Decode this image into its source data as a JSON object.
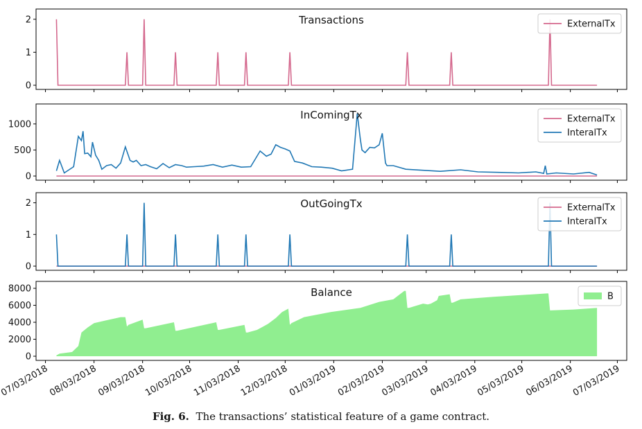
{
  "caption": {
    "label": "Fig. 6.",
    "text": "The transactions’ statistical feature of a game contract."
  },
  "colors": {
    "external": "#d4688d",
    "internal": "#1f77b4",
    "balance": "#90ee90"
  },
  "chart_data": [
    {
      "type": "line",
      "title": "Transactions",
      "ylim": [
        0,
        2.1
      ],
      "yticks": [
        "0",
        "1",
        "2"
      ],
      "legend_position": "top-right",
      "series": [
        {
          "name": "ExternalTx",
          "x": [
            "2018-07-10",
            "2018-07-11",
            "2018-08-23",
            "2018-08-24",
            "2018-08-25",
            "2018-09-03",
            "2018-09-04",
            "2018-09-05",
            "2018-09-23",
            "2018-09-24",
            "2018-09-25",
            "2018-10-20",
            "2018-10-21",
            "2018-10-22",
            "2018-11-07",
            "2018-11-08",
            "2018-11-09",
            "2018-12-05",
            "2018-12-06",
            "2018-12-07",
            "2019-02-18",
            "2019-02-19",
            "2019-02-20",
            "2019-03-18",
            "2019-03-19",
            "2019-03-20",
            "2019-05-20",
            "2019-05-21",
            "2019-05-22",
            "2019-06-20"
          ],
          "values": [
            2,
            0,
            0,
            1,
            0,
            0,
            2,
            0,
            0,
            1,
            0,
            0,
            1,
            0,
            0,
            1,
            0,
            0,
            1,
            0,
            0,
            1,
            0,
            0,
            1,
            0,
            0,
            2,
            0,
            0
          ]
        }
      ]
    },
    {
      "type": "line",
      "title": "InComingTx",
      "ylim": [
        0,
        1250
      ],
      "yticks": [
        "0",
        "500",
        "1000"
      ],
      "legend_position": "top-right",
      "series": [
        {
          "name": "ExternalTx",
          "x": [
            "2018-07-10",
            "2019-06-20"
          ],
          "values": [
            0,
            0
          ]
        },
        {
          "name": "InteralTx",
          "x": [
            "2018-07-10",
            "2018-07-12",
            "2018-07-15",
            "2018-07-18",
            "2018-07-21",
            "2018-07-24",
            "2018-07-26",
            "2018-07-27",
            "2018-07-28",
            "2018-07-30",
            "2018-08-01",
            "2018-08-02",
            "2018-08-04",
            "2018-08-06",
            "2018-08-08",
            "2018-08-11",
            "2018-08-14",
            "2018-08-17",
            "2018-08-20",
            "2018-08-23",
            "2018-08-26",
            "2018-08-28",
            "2018-08-30",
            "2018-09-02",
            "2018-09-05",
            "2018-09-08",
            "2018-09-12",
            "2018-09-16",
            "2018-09-20",
            "2018-09-24",
            "2018-09-28",
            "2018-10-01",
            "2018-10-06",
            "2018-10-12",
            "2018-10-18",
            "2018-10-24",
            "2018-10-30",
            "2018-11-05",
            "2018-11-11",
            "2018-11-17",
            "2018-11-21",
            "2018-11-24",
            "2018-11-27",
            "2018-11-30",
            "2018-12-03",
            "2018-12-06",
            "2018-12-09",
            "2018-12-14",
            "2018-12-20",
            "2018-12-26",
            "2019-01-02",
            "2019-01-08",
            "2019-01-15",
            "2019-01-18",
            "2019-01-20",
            "2019-01-21",
            "2019-01-23",
            "2019-01-26",
            "2019-01-29",
            "2019-02-01",
            "2019-02-03",
            "2019-02-05",
            "2019-02-06",
            "2019-02-10",
            "2019-02-18",
            "2019-03-01",
            "2019-03-12",
            "2019-03-25",
            "2019-04-05",
            "2019-04-18",
            "2019-05-01",
            "2019-05-12",
            "2019-05-17",
            "2019-05-18",
            "2019-05-19",
            "2019-05-25",
            "2019-06-05",
            "2019-06-15",
            "2019-06-20"
          ],
          "values": [
            100,
            300,
            60,
            120,
            180,
            760,
            680,
            860,
            430,
            440,
            370,
            650,
            400,
            300,
            130,
            200,
            220,
            150,
            250,
            560,
            300,
            270,
            300,
            200,
            220,
            180,
            140,
            240,
            160,
            220,
            200,
            170,
            180,
            190,
            220,
            170,
            210,
            170,
            180,
            480,
            380,
            420,
            600,
            550,
            520,
            480,
            280,
            250,
            180,
            170,
            150,
            100,
            130,
            1200,
            700,
            500,
            450,
            550,
            540,
            600,
            820,
            250,
            200,
            200,
            130,
            110,
            90,
            120,
            80,
            70,
            60,
            80,
            50,
            200,
            40,
            60,
            40,
            70,
            20
          ]
        }
      ]
    },
    {
      "type": "line",
      "title": "OutGoingTx",
      "ylim": [
        0,
        2.1
      ],
      "yticks": [
        "0",
        "1",
        "2"
      ],
      "legend_position": "top-right",
      "series": [
        {
          "name": "ExternalTx",
          "x": [
            "2018-07-10",
            "2019-06-20"
          ],
          "values": [
            0,
            0
          ]
        },
        {
          "name": "InteralTx",
          "x": [
            "2018-07-10",
            "2018-07-11",
            "2018-08-23",
            "2018-08-24",
            "2018-08-25",
            "2018-09-03",
            "2018-09-04",
            "2018-09-05",
            "2018-09-23",
            "2018-09-24",
            "2018-09-25",
            "2018-10-20",
            "2018-10-21",
            "2018-10-22",
            "2018-11-07",
            "2018-11-08",
            "2018-11-09",
            "2018-12-05",
            "2018-12-06",
            "2018-12-07",
            "2019-02-18",
            "2019-02-19",
            "2019-02-20",
            "2019-03-18",
            "2019-03-19",
            "2019-03-20",
            "2019-05-20",
            "2019-05-21",
            "2019-05-22",
            "2019-06-20"
          ],
          "values": [
            1,
            0,
            0,
            1,
            0,
            0,
            2,
            0,
            0,
            1,
            0,
            0,
            1,
            0,
            0,
            1,
            0,
            0,
            1,
            0,
            0,
            1,
            0,
            0,
            1,
            0,
            0,
            2,
            0,
            0
          ]
        }
      ]
    },
    {
      "type": "area",
      "title": "Balance",
      "ylim": [
        0,
        8000
      ],
      "yticks": [
        "0",
        "2000",
        "4000",
        "6000",
        "8000"
      ],
      "legend_position": "top-right",
      "series": [
        {
          "name": "B",
          "x": [
            "2018-07-10",
            "2018-07-12",
            "2018-07-20",
            "2018-07-24",
            "2018-07-26",
            "2018-07-30",
            "2018-08-03",
            "2018-08-10",
            "2018-08-20",
            "2018-08-23",
            "2018-08-24",
            "2018-08-25",
            "2018-09-03",
            "2018-09-04",
            "2018-09-05",
            "2018-09-23",
            "2018-09-24",
            "2018-09-25",
            "2018-10-20",
            "2018-10-21",
            "2018-10-22",
            "2018-11-07",
            "2018-11-08",
            "2018-11-09",
            "2018-11-15",
            "2018-11-22",
            "2018-11-27",
            "2018-12-01",
            "2018-12-05",
            "2018-12-06",
            "2018-12-07",
            "2018-12-15",
            "2019-01-01",
            "2019-01-20",
            "2019-02-01",
            "2019-02-10",
            "2019-02-17",
            "2019-02-18",
            "2019-02-19",
            "2019-02-20",
            "2019-03-01",
            "2019-03-04",
            "2019-03-06",
            "2019-03-10",
            "2019-03-11",
            "2019-03-18",
            "2019-03-19",
            "2019-03-20",
            "2019-03-25",
            "2019-04-15",
            "2019-05-19",
            "2019-05-20",
            "2019-05-21",
            "2019-06-05",
            "2019-06-20"
          ],
          "values": [
            100,
            300,
            500,
            1200,
            2800,
            3400,
            3900,
            4200,
            4600,
            4600,
            3500,
            3700,
            4300,
            3300,
            3300,
            4000,
            3000,
            3000,
            4000,
            3100,
            3100,
            3700,
            2800,
            2800,
            3100,
            3800,
            4500,
            5200,
            5600,
            3700,
            3900,
            4600,
            5200,
            5700,
            6400,
            6700,
            7700,
            7700,
            5700,
            5700,
            6200,
            6100,
            6200,
            6600,
            7100,
            7300,
            6300,
            6300,
            6700,
            7000,
            7400,
            7400,
            5400,
            5500,
            5700
          ]
        }
      ]
    }
  ],
  "x_axis": {
    "ticks": [
      {
        "date": "2018-07-03",
        "label": "07/03/2018"
      },
      {
        "date": "2018-08-03",
        "label": "08/03/2018"
      },
      {
        "date": "2018-09-03",
        "label": "09/03/2018"
      },
      {
        "date": "2018-10-03",
        "label": "10/03/2018"
      },
      {
        "date": "2018-11-03",
        "label": "11/03/2018"
      },
      {
        "date": "2018-12-03",
        "label": "12/03/2018"
      },
      {
        "date": "2019-01-03",
        "label": "01/03/2019"
      },
      {
        "date": "2019-02-03",
        "label": "02/03/2019"
      },
      {
        "date": "2019-03-03",
        "label": "03/03/2019"
      },
      {
        "date": "2019-04-03",
        "label": "04/03/2019"
      },
      {
        "date": "2019-05-03",
        "label": "05/03/2019"
      },
      {
        "date": "2019-06-03",
        "label": "06/03/2019"
      },
      {
        "date": "2019-07-03",
        "label": "07/03/2019"
      }
    ],
    "range": [
      "2018-06-27",
      "2019-07-09"
    ]
  }
}
